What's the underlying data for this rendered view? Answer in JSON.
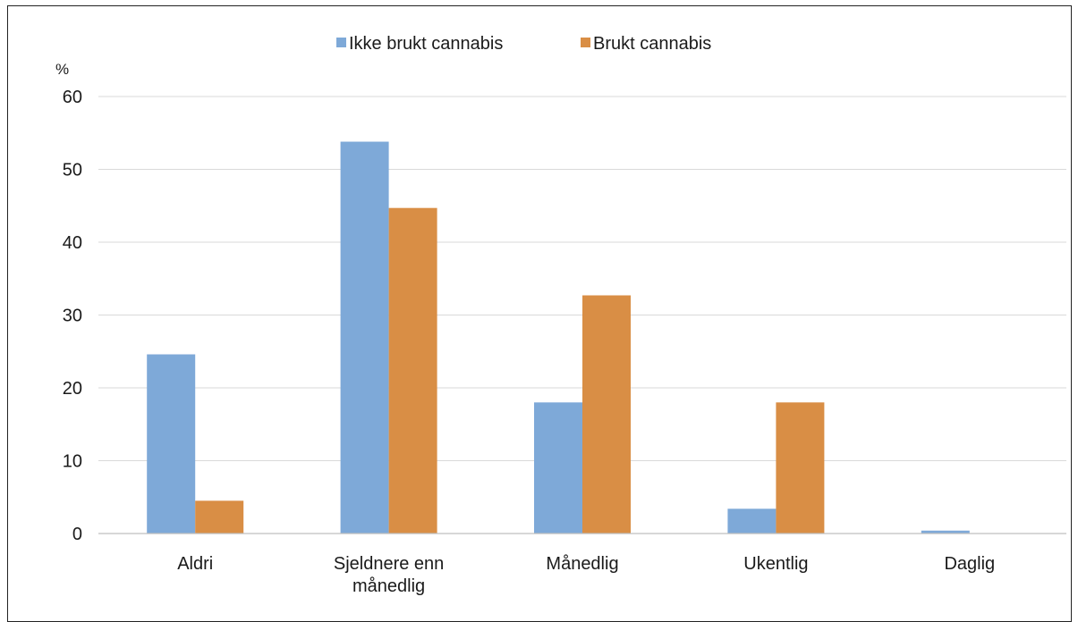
{
  "chart_data": {
    "type": "bar",
    "title": "",
    "xlabel": "",
    "ylabel": "%",
    "ylim": [
      0,
      60
    ],
    "yticks": [
      "0",
      "10",
      "20",
      "30",
      "40",
      "50",
      "60"
    ],
    "grid": true,
    "legend_position": "top-center",
    "categories": [
      [
        "Aldri"
      ],
      [
        "Sjeldnere enn",
        "månedlig"
      ],
      [
        "Månedlig"
      ],
      [
        "Ukentlig"
      ],
      [
        "Daglig"
      ]
    ],
    "series": [
      {
        "name": "Ikke brukt cannabis",
        "color": "#7ea9d8",
        "values": [
          24.6,
          53.8,
          18.0,
          3.4,
          0.4
        ]
      },
      {
        "name": "Brukt cannabis",
        "color": "#d98e45",
        "values": [
          4.5,
          44.7,
          32.7,
          18.0,
          0.0
        ]
      }
    ]
  }
}
